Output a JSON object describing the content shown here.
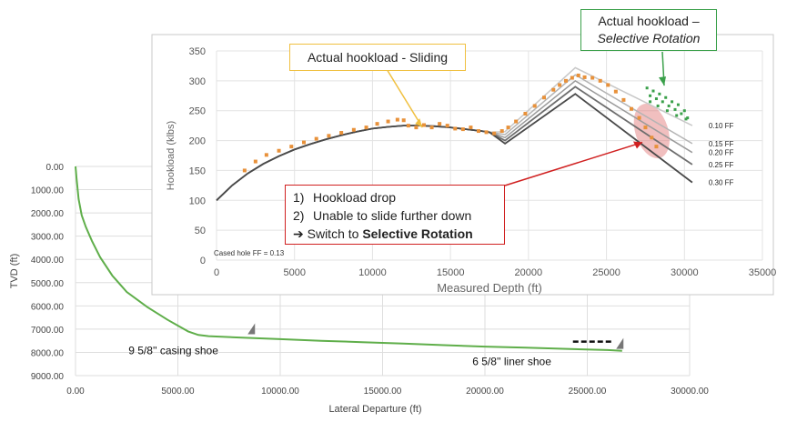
{
  "chart_data": [
    {
      "type": "line",
      "title": "",
      "xlabel": "Lateral Departure (ft)",
      "ylabel": "TVD (ft)",
      "xlim": [
        0,
        30000
      ],
      "ylim": [
        9000,
        0
      ],
      "y_inverted": true,
      "grid": true,
      "x_ticks": [
        "0.00",
        "5000.00",
        "10000.00",
        "15000.00",
        "20000.00",
        "25000.00",
        "30000.00"
      ],
      "y_ticks": [
        "0.00",
        "1000.00",
        "2000.00",
        "3000.00",
        "4000.00",
        "5000.00",
        "6000.00",
        "7000.00",
        "8000.00",
        "9000.00"
      ],
      "series": [
        {
          "color": "#5fae4a",
          "x": [
            0,
            50,
            150,
            300,
            500,
            800,
            1200,
            1800,
            2500,
            3500,
            4500,
            5500,
            6000,
            6500,
            8000,
            10000,
            12000,
            14000,
            16000,
            18000,
            20000,
            22000,
            24000,
            26000,
            26700
          ],
          "y": [
            0,
            500,
            1400,
            2100,
            2600,
            3200,
            3900,
            4700,
            5400,
            6050,
            6600,
            7100,
            7250,
            7300,
            7360,
            7430,
            7500,
            7560,
            7620,
            7690,
            7750,
            7800,
            7850,
            7900,
            7930
          ]
        }
      ],
      "annotations": [
        {
          "text": "9 5/8'' casing shoe",
          "x": 8500,
          "y": 7300
        },
        {
          "text": "6 5/8'' liner shoe",
          "x": 26500,
          "y": 7930
        }
      ]
    },
    {
      "type": "line",
      "title": "",
      "xlabel": "Measured Depth (ft)",
      "ylabel": "Hookload (klbs)",
      "xlim": [
        0,
        35000
      ],
      "ylim": [
        0,
        350
      ],
      "grid": true,
      "x_ticks": [
        "0",
        "5000",
        "10000",
        "15000",
        "20000",
        "25000",
        "30000",
        "35000"
      ],
      "y_ticks": [
        "0",
        "50",
        "100",
        "150",
        "200",
        "250",
        "300",
        "350"
      ],
      "common_curve": {
        "x": [
          0,
          1000,
          2000,
          3000,
          4000,
          5000,
          6000,
          7000,
          8000,
          9000,
          10000,
          11000,
          12000,
          13000,
          14000,
          15000,
          16000,
          17000,
          17500
        ],
        "y": [
          100,
          125,
          145,
          161,
          174,
          185,
          194,
          202,
          209,
          215,
          220,
          223,
          225,
          225,
          224,
          222,
          219,
          216,
          214
        ]
      },
      "series": [
        {
          "name": "0.10 FF",
          "color": "#c8c8c8",
          "x": [
            17500,
            18500,
            23000,
            30500
          ],
          "y": [
            214,
            215,
            322,
            225
          ]
        },
        {
          "name": "0.15 FF",
          "color": "#b4b4b4",
          "x": [
            17500,
            18500,
            23000,
            30500
          ],
          "y": [
            213,
            210,
            310,
            195
          ]
        },
        {
          "name": "0.20 FF",
          "color": "#9a9a9a",
          "x": [
            17500,
            18500,
            23000,
            30500
          ],
          "y": [
            212,
            205,
            300,
            180
          ]
        },
        {
          "name": "0.25 FF",
          "color": "#6e6e6e",
          "x": [
            17500,
            18500,
            23000,
            30500
          ],
          "y": [
            211,
            200,
            290,
            160
          ]
        },
        {
          "name": "0.30 FF",
          "color": "#4a4a4a",
          "x": [
            17500,
            18500,
            23000,
            30500
          ],
          "y": [
            210,
            195,
            278,
            130
          ]
        }
      ],
      "scatter_series": [
        {
          "color": "#e8913a",
          "x": [
            1800,
            2500,
            3200,
            4000,
            4800,
            5600,
            6400,
            7200,
            8000,
            8800,
            9600,
            10300,
            11000,
            11600,
            12000,
            12300,
            12800,
            13300,
            13800,
            14300,
            14800,
            15300,
            15800,
            16300,
            16800,
            17300,
            17800,
            18300,
            18700,
            19200,
            19800,
            20400,
            21000,
            21600,
            22000,
            22400,
            22800,
            23200,
            23600,
            24100,
            24600,
            25100,
            25600,
            26100,
            26600,
            27100,
            27500,
            27900,
            28200
          ],
          "y": [
            150,
            165,
            176,
            183,
            190,
            197,
            203,
            208,
            213,
            218,
            222,
            228,
            232,
            235,
            234,
            225,
            222,
            226,
            222,
            228,
            225,
            220,
            219,
            222,
            216,
            214,
            212,
            216,
            222,
            232,
            245,
            258,
            272,
            285,
            293,
            300,
            305,
            309,
            306,
            305,
            300,
            293,
            282,
            268,
            253,
            238,
            222,
            205,
            190
          ]
        },
        {
          "color": "#3aa04a",
          "x": [
            27600,
            27800,
            28000,
            28200,
            28400,
            28600,
            28800,
            29000,
            29200,
            29400,
            29600,
            29800,
            30000,
            30200,
            27800,
            28300,
            28900,
            29500,
            30100
          ],
          "y": [
            288,
            275,
            283,
            270,
            278,
            265,
            272,
            258,
            265,
            252,
            260,
            245,
            250,
            238,
            265,
            258,
            250,
            242,
            236
          ]
        }
      ],
      "annotations": [
        {
          "text": "Cased hole FF = 0.13"
        }
      ]
    }
  ],
  "callouts": {
    "sliding": "Actual hookload - Sliding",
    "rotation_line1": "Actual hookload –",
    "rotation_line2": "Selective Rotation",
    "drop_1_num": "1)",
    "drop_1": "Hookload drop",
    "drop_2_num": "2)",
    "drop_2": "Unable to slide further down",
    "drop_3_prefix": "➔ Switch to ",
    "drop_3_bold": "Selective Rotation"
  },
  "colors": {
    "trajectory": "#5fae4a",
    "sliding_points": "#e8913a",
    "rotation_points": "#3aa04a",
    "drop_highlight": "#e07070"
  }
}
